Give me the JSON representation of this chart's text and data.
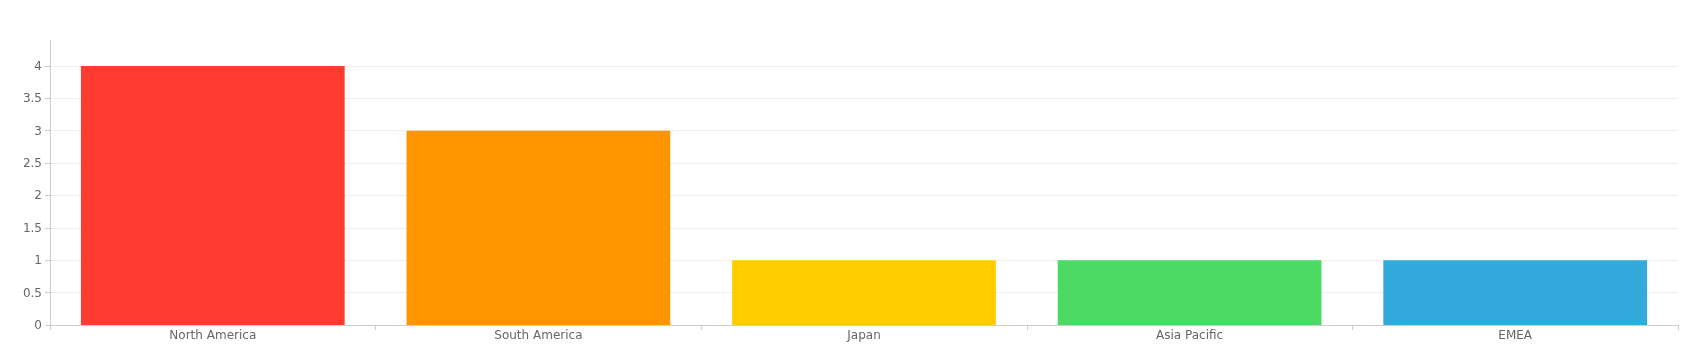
{
  "chart_data": {
    "type": "bar",
    "categories": [
      "North America",
      "South America",
      "Japan",
      "Asia Pacific",
      "EMEA"
    ],
    "values": [
      4,
      3,
      1,
      1,
      1
    ],
    "colors": [
      "#ff3b30",
      "#ff9500",
      "#ffcc00",
      "#4cd964",
      "#34aadc"
    ],
    "ylim": [
      0,
      4.4
    ],
    "yticks": [
      0,
      0.5,
      1,
      1.5,
      2,
      2.5,
      3,
      3.5,
      4
    ],
    "grid": "y"
  }
}
